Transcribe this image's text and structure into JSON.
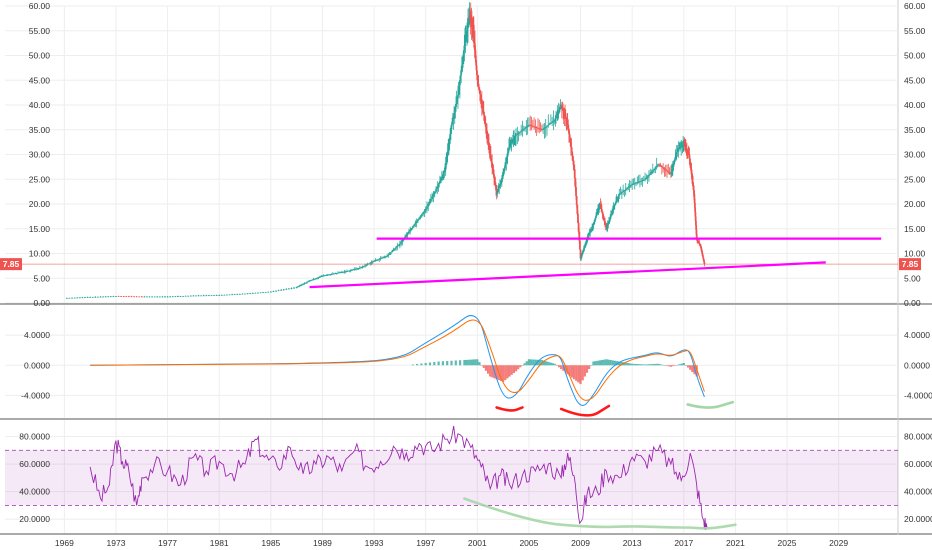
{
  "chart_data": [
    {
      "panel": "price",
      "type": "candlestick",
      "y_axis_ticks": [
        "0.00",
        "5.00",
        "10.00",
        "15.00",
        "20.00",
        "25.00",
        "30.00",
        "35.00",
        "40.00",
        "45.00",
        "50.00",
        "55.00",
        "60.00"
      ],
      "ylim": [
        0,
        60
      ],
      "last_price_label": "7.85",
      "last_price": 7.85,
      "grid": true,
      "colors": {
        "up": "#26a69a",
        "down": "#ef5350",
        "trendline": "#ff00ff",
        "price_line": "#ef5350"
      },
      "series": [
        {
          "name": "",
          "x": [
            1969,
            1971,
            1973,
            1975,
            1977,
            1979,
            1981,
            1983,
            1985,
            1987,
            1988,
            1989,
            1990,
            1991,
            1992,
            1993,
            1994,
            1995,
            1996,
            1997,
            1998,
            1998.5,
            1999,
            1999.5,
            2000,
            2000.4,
            2000.7,
            2001,
            2001.5,
            2002,
            2002.5,
            2003,
            2003.5,
            2004,
            2005,
            2006,
            2007,
            2007.5,
            2008,
            2008.5,
            2009,
            2009.5,
            2010,
            2010.5,
            2011,
            2011.5,
            2012,
            2013,
            2014,
            2015,
            2016,
            2016.5,
            2017,
            2017.4,
            2017.8,
            2018,
            2018.3,
            2018.6
          ],
          "y": [
            1.0,
            1.2,
            1.4,
            1.3,
            1.3,
            1.5,
            1.6,
            1.9,
            2.3,
            3.2,
            4.5,
            5.5,
            6.0,
            6.5,
            7.2,
            8.5,
            9.5,
            12.0,
            15.5,
            19.0,
            24.0,
            27.0,
            36.0,
            42.0,
            52.0,
            58.0,
            55.0,
            45.0,
            38.0,
            30.0,
            22.0,
            26.0,
            32.0,
            34.0,
            36.0,
            35.0,
            37.0,
            40.0,
            36.0,
            27.0,
            9.0,
            13.0,
            16.0,
            20.0,
            15.0,
            19.0,
            22.0,
            24.0,
            25.0,
            28.0,
            26.0,
            31.0,
            32.0,
            30.0,
            22.0,
            13.0,
            11.5,
            7.85
          ]
        }
      ],
      "horizontal_line": 13.0,
      "trendline": {
        "x": [
          1988,
          2028
        ],
        "y": [
          3.2,
          8.2
        ]
      }
    },
    {
      "panel": "macd",
      "type": "line",
      "y_axis_ticks": [
        "4.0000",
        "0.0000",
        "-4.0000"
      ],
      "ylim": [
        -7,
        8
      ],
      "series": [
        {
          "name": "",
          "color": "#2196f3",
          "x": [
            1971,
            1980,
            1990,
            1995,
            1997,
            1999,
            2001,
            2002,
            2003,
            2004,
            2005,
            2006,
            2007,
            2007.5,
            2008,
            2009,
            2010,
            2011,
            2012,
            2013,
            2014,
            2015,
            2016,
            2017,
            2017.5,
            2018,
            2018.6
          ],
          "y": [
            0,
            0.1,
            0.3,
            0.8,
            3.0,
            5.0,
            7.5,
            1.0,
            -4.5,
            -4.2,
            -1.0,
            1.2,
            1.5,
            1.0,
            -2.0,
            -6.0,
            -4.0,
            -1.0,
            0.5,
            1.0,
            1.3,
            1.8,
            1.0,
            2.2,
            1.8,
            -1.5,
            -4.2
          ]
        },
        {
          "name": "",
          "color": "#ff6d00",
          "x": [
            1971,
            1980,
            1990,
            1995,
            1997,
            1999,
            2001,
            2002,
            2003,
            2004,
            2005,
            2006,
            2007,
            2007.5,
            2008,
            2009,
            2010,
            2011,
            2012,
            2013,
            2014,
            2015,
            2016,
            2017,
            2017.5,
            2018,
            2018.6
          ],
          "y": [
            0,
            0.1,
            0.25,
            0.7,
            2.5,
            4.3,
            6.8,
            2.5,
            -2.8,
            -4.0,
            -2.0,
            0.5,
            1.3,
            1.2,
            -0.8,
            -4.8,
            -4.5,
            -1.8,
            0,
            0.8,
            1.2,
            1.6,
            1.2,
            1.9,
            2.0,
            -0.5,
            -3.5
          ]
        }
      ],
      "histogram": {
        "x": [
          1996,
          1998,
          2000,
          2001,
          2002,
          2003,
          2004,
          2005,
          2006,
          2007,
          2008,
          2009,
          2010,
          2011,
          2012,
          2013,
          2014,
          2015,
          2016,
          2017,
          2018
        ],
        "y": [
          0.1,
          0.5,
          0.7,
          0.8,
          -1.5,
          -2.2,
          -0.8,
          0.8,
          0.7,
          0.2,
          -1.2,
          -2.5,
          0.5,
          0.8,
          0.5,
          0.2,
          0.1,
          0.2,
          -0.2,
          0.3,
          -1.5
        ]
      },
      "annotations": [
        {
          "kind": "curve",
          "color": "#ff1a1a",
          "x": [
            2002.5,
            2003.6,
            2004.5
          ],
          "y": [
            -5.6,
            -6.2,
            -5.6
          ]
        },
        {
          "kind": "curve",
          "color": "#ff1a1a",
          "x": [
            2007.5,
            2009.5,
            2011.2
          ],
          "y": [
            -5.8,
            -7.2,
            -5.4
          ]
        },
        {
          "kind": "curve",
          "color": "#a5d6a7",
          "x": [
            2017.3,
            2018.8,
            2020.8
          ],
          "y": [
            -5.2,
            -5.9,
            -4.9
          ]
        }
      ]
    },
    {
      "panel": "rsi",
      "type": "line",
      "y_axis_ticks": [
        "80.0000",
        "60.0000",
        "40.0000",
        "20.0000"
      ],
      "ylim": [
        10,
        92
      ],
      "band": [
        30,
        70
      ],
      "series": [
        {
          "name": "",
          "color": "#9c27b0",
          "x": [
            1971,
            1971.8,
            1972.5,
            1973,
            1973.5,
            1974,
            1974.6,
            1975,
            1976,
            1977,
            1978,
            1979,
            1980,
            1981,
            1982,
            1983,
            1983.8,
            1984.5,
            1985.5,
            1986.5,
            1987.5,
            1988.5,
            1989.5,
            1990.5,
            1991.5,
            1992.5,
            1993.5,
            1994.5,
            1995.5,
            1996.5,
            1997.5,
            1998.5,
            1999.5,
            2000.5,
            2001.3,
            2002,
            2002.8,
            2003.5,
            2004.5,
            2005.5,
            2006.5,
            2007.5,
            2008,
            2008.6,
            2009,
            2009.5,
            2010.3,
            2011,
            2012,
            2013,
            2014,
            2015,
            2016,
            2016.8,
            2017.5,
            2018,
            2018.5,
            2018.8
          ],
          "y": [
            58,
            35,
            45,
            77,
            62,
            55,
            30,
            50,
            60,
            55,
            45,
            65,
            55,
            62,
            53,
            60,
            78,
            65,
            58,
            72,
            53,
            60,
            65,
            55,
            70,
            58,
            62,
            73,
            68,
            75,
            70,
            78,
            82,
            72,
            58,
            42,
            52,
            45,
            52,
            55,
            60,
            50,
            68,
            45,
            18,
            38,
            40,
            55,
            50,
            65,
            62,
            70,
            60,
            48,
            68,
            45,
            20,
            14
          ]
        }
      ],
      "annotations": [
        {
          "kind": "curve",
          "color": "#a5d6a7",
          "x": [
            2000,
            2005,
            2010,
            2013,
            2016,
            2017.5,
            2019,
            2021
          ],
          "y": [
            35,
            18,
            14,
            15,
            14,
            14,
            13,
            16
          ]
        }
      ]
    }
  ],
  "x_axis_ticks": [
    "1969",
    "1973",
    "1977",
    "1981",
    "1985",
    "1989",
    "1993",
    "1997",
    "2001",
    "2005",
    "2009",
    "2013",
    "2017",
    "2021",
    "2025",
    "2029"
  ],
  "xlim": [
    1964.4,
    2033.6
  ]
}
